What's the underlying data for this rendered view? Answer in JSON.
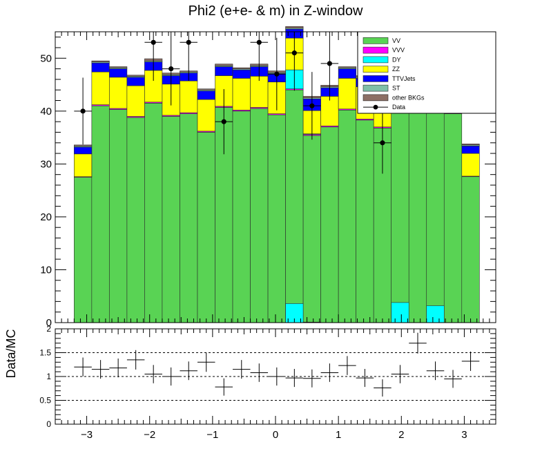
{
  "chart_data": [
    {
      "type": "bar",
      "stacked": true,
      "title": "Phi2 (e+e- & m) in Z-window",
      "xlabel": "",
      "ylabel": "",
      "xlim": [
        -3.5,
        3.5
      ],
      "ylim": [
        0,
        55
      ],
      "yticks": [
        0,
        10,
        20,
        30,
        40,
        50
      ],
      "xticks": [
        -3,
        -2,
        -1,
        0,
        1,
        2,
        3
      ],
      "xtick_labels": [
        "−3",
        "−2",
        "−1",
        "0",
        "1",
        "2",
        "3"
      ],
      "legend_position": "top-right",
      "bin_edges": [
        -3.2,
        -2.92,
        -2.64,
        -2.36,
        -2.08,
        -1.8,
        -1.52,
        -1.24,
        -0.96,
        -0.68,
        -0.4,
        -0.12,
        0.16,
        0.44,
        0.72,
        1.0,
        1.28,
        1.56,
        1.84,
        2.12,
        2.4,
        2.68,
        2.96,
        3.24
      ],
      "series": [
        {
          "name": "VV",
          "color": "#59d354",
          "values": [
            27.5,
            41.0,
            40.3,
            38.8,
            41.5,
            39.0,
            39.5,
            36.0,
            40.7,
            40.0,
            40.5,
            39.3,
            44.0,
            35.4,
            37.0,
            40.2,
            38.3,
            36.8,
            40.0,
            40.0,
            40.0,
            39.5,
            27.6
          ]
        },
        {
          "name": "VVV",
          "color": "#ff00ff",
          "values": [
            0.1,
            0.2,
            0.2,
            0.2,
            0.2,
            0.2,
            0.2,
            0.2,
            0.2,
            0.2,
            0.2,
            0.2,
            0.2,
            0.2,
            0.2,
            0.2,
            0.2,
            0.2,
            0.2,
            0.2,
            0.2,
            0.2,
            0.1
          ]
        },
        {
          "name": "DY",
          "color": "#00ffff",
          "values": [
            0,
            0,
            0,
            0,
            0,
            0,
            0,
            0,
            0,
            0,
            0,
            0,
            3.6,
            0.1,
            0,
            0,
            0,
            0,
            3.8,
            0,
            3.2,
            0,
            0
          ]
        },
        {
          "name": "ZZ",
          "color": "#ffff00",
          "values": [
            4.3,
            6.2,
            5.9,
            5.8,
            6.0,
            5.9,
            6.0,
            6.0,
            5.8,
            6.0,
            5.9,
            6.0,
            6.0,
            4.4,
            5.6,
            5.8,
            6.1,
            6.2,
            6.0,
            6.0,
            6.0,
            6.0,
            4.3
          ]
        },
        {
          "name": "TTVJets",
          "color": "#0000ff",
          "values": [
            1.3,
            1.7,
            1.6,
            1.6,
            1.6,
            1.6,
            1.5,
            1.6,
            1.7,
            1.6,
            1.8,
            1.6,
            1.7,
            2.2,
            1.6,
            1.8,
            1.6,
            1.6,
            1.6,
            1.6,
            1.6,
            1.6,
            1.4
          ]
        },
        {
          "name": "ST",
          "color": "#7fbfa8",
          "values": [
            0.2,
            0.2,
            0.2,
            0.2,
            0.2,
            0.2,
            0.2,
            0.2,
            0.2,
            0.2,
            0.2,
            0.2,
            0.2,
            0.2,
            0.2,
            0.2,
            0.2,
            0.2,
            0.2,
            0.2,
            0.2,
            0.2,
            0.2
          ]
        },
        {
          "name": "other BKGs",
          "color": "#8c6e64",
          "values": [
            0.2,
            0.2,
            0.2,
            0.2,
            0.4,
            0.3,
            0.2,
            0.2,
            0.3,
            0.2,
            0.3,
            0.3,
            0.3,
            0.3,
            0.3,
            0.2,
            0.3,
            0.3,
            0.3,
            0.3,
            0.3,
            0.3,
            0.2
          ]
        }
      ],
      "data_series": {
        "name": "Data",
        "values": [
          40,
          0,
          0,
          0,
          53,
          48,
          53,
          0,
          38,
          0,
          53,
          47,
          51,
          41,
          49,
          0,
          0,
          34,
          0,
          0,
          0,
          0,
          0
        ],
        "visible": [
          true,
          false,
          false,
          false,
          true,
          true,
          true,
          false,
          true,
          false,
          true,
          true,
          true,
          true,
          true,
          false,
          false,
          true,
          false,
          false,
          false,
          false,
          false
        ]
      }
    },
    {
      "type": "scatter",
      "ylabel": "Data/MC",
      "ylim": [
        0,
        2
      ],
      "yticks": [
        0,
        0.5,
        1,
        1.5,
        2
      ],
      "ytick_labels": [
        "0",
        "0.5",
        "1",
        "1.5",
        "2"
      ],
      "reference_lines": [
        0.5,
        1,
        1.5
      ],
      "x": [
        -3.06,
        -2.78,
        -2.5,
        -2.22,
        -1.94,
        -1.66,
        -1.38,
        -1.1,
        -0.82,
        -0.54,
        -0.26,
        0.02,
        0.3,
        0.58,
        0.86,
        1.14,
        1.42,
        1.7,
        1.98,
        2.26,
        2.54,
        2.82,
        3.1
      ],
      "y": [
        1.2,
        1.15,
        1.18,
        1.35,
        1.05,
        1.0,
        1.12,
        1.3,
        0.78,
        1.15,
        1.08,
        1.0,
        0.97,
        0.96,
        1.08,
        1.23,
        0.97,
        0.76,
        1.05,
        1.7,
        1.12,
        0.95,
        1.32
      ]
    }
  ]
}
